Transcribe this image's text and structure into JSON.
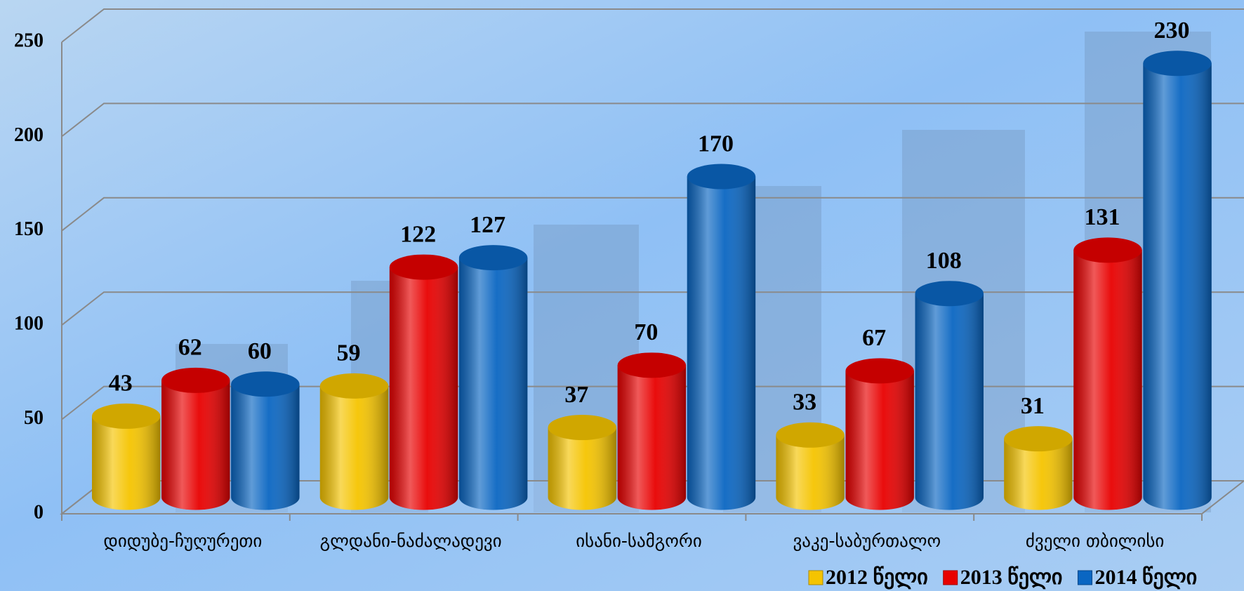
{
  "chart_data": {
    "type": "bar3d",
    "categories": [
      "დიდუბე-ჩუღურეთი",
      "გლდანი-ნაძალადევი",
      "ისანი-სამგორი",
      "ვაკე-საბურთალო",
      "ძველი თბილისი"
    ],
    "series": [
      {
        "name": "2012 წელი",
        "color": "#f5c400",
        "values": [
          43,
          59,
          37,
          33,
          31
        ]
      },
      {
        "name": "2013 წელი",
        "color": "#e80000",
        "values": [
          62,
          122,
          70,
          67,
          131
        ]
      },
      {
        "name": "2014 წელი",
        "color": "#0a66c2",
        "values": [
          60,
          127,
          170,
          108,
          230
        ]
      }
    ],
    "ylim": [
      0,
      250
    ],
    "yticks": [
      0,
      50,
      100,
      150,
      200,
      250
    ],
    "grid": true,
    "legend": "bottom-right"
  }
}
